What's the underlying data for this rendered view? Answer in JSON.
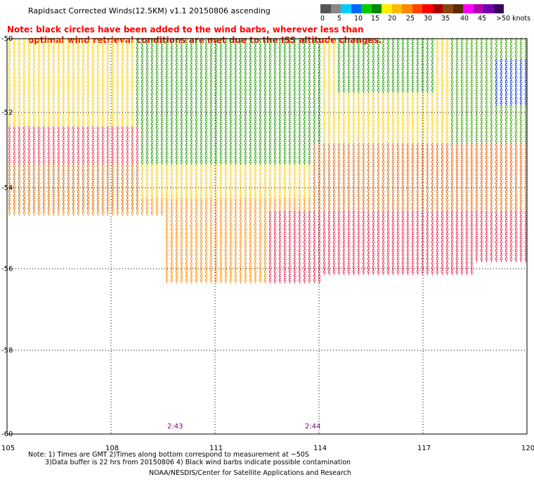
{
  "header": {
    "title": "Rapidsact Corrected Winds(12.5KM) v1.1 20150806 ascending",
    "note_line1": "Note: black circles have been added to the wind barbs, wherever less than",
    "note_line2": "optimal wind retrieval conditions are met due to the ISS altitude changes."
  },
  "colorbar": {
    "colors": [
      "#555555",
      "#888888",
      "#00ccff",
      "#0066ff",
      "#00cc00",
      "#008800",
      "#ffee00",
      "#ffbb00",
      "#ff8800",
      "#ff4400",
      "#ff0000",
      "#aa0000",
      "#8b4513",
      "#5a2a00",
      "#ff00ff",
      "#b000b0",
      "#7000b0",
      "#3a0060"
    ],
    "labels": [
      "0",
      "5",
      "10",
      "15",
      "20",
      "25",
      "30",
      "35",
      "40",
      "45",
      ">50 knots"
    ]
  },
  "map": {
    "lat_labels": [
      "-50",
      "-52",
      "-54",
      "-56",
      "-58",
      "-60"
    ],
    "lon_labels": [
      "105",
      "108",
      "111",
      "114",
      "117",
      "120"
    ],
    "time_labels": [
      "2:43",
      "2:44"
    ]
  },
  "footer": {
    "line1": "Note: 1) Times are GMT 2)Times along bottom correspond to measurement at ~50S",
    "line2": "3)Data buffer is 22 hrs from 20150806 4) Black wind barbs indicate possible contamination",
    "line3": "NOAA/NESDIS/Center for Satellite Applications and Research"
  }
}
